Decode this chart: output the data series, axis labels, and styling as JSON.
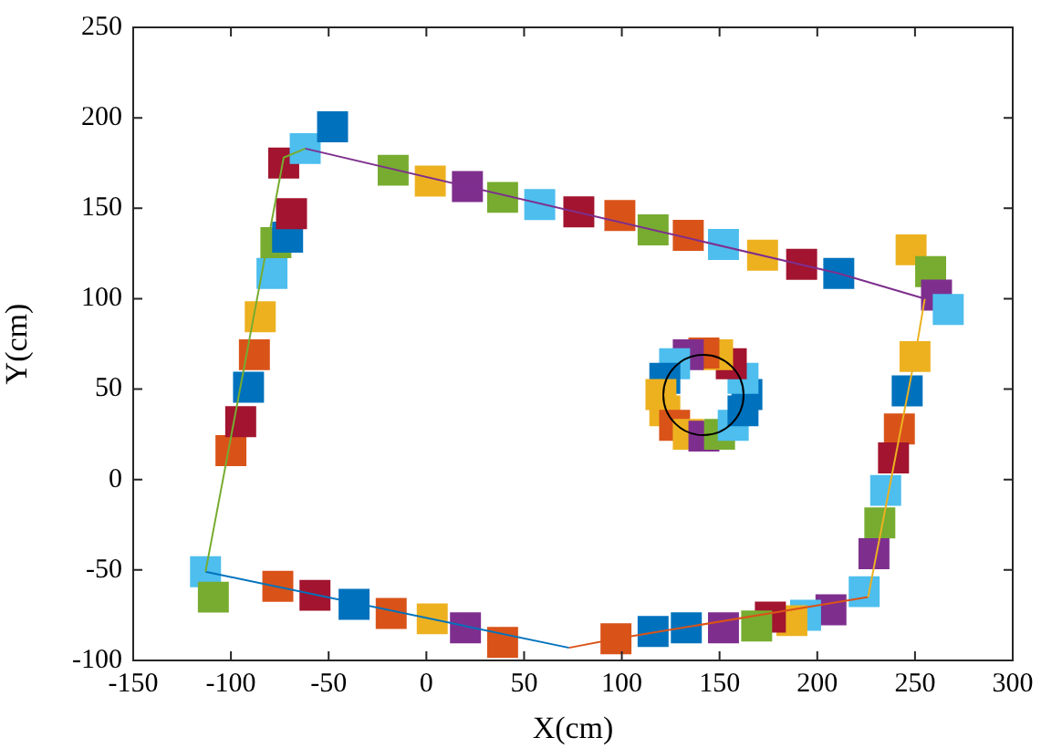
{
  "chart_data": {
    "type": "scatter",
    "xlabel": "X(cm)",
    "ylabel": "Y(cm)",
    "xlim": [
      -150,
      300
    ],
    "ylim": [
      -100,
      250
    ],
    "xticks": [
      -150,
      -100,
      -50,
      0,
      50,
      100,
      150,
      200,
      250,
      300
    ],
    "yticks": [
      -100,
      -50,
      0,
      50,
      100,
      150,
      200,
      250
    ],
    "grid": false,
    "legend": false,
    "series": [
      {
        "type": "line",
        "color": "#77ac30",
        "marker": "none",
        "x": [
          -113,
          -73,
          -62
        ],
        "values": [
          -51,
          178,
          183
        ]
      },
      {
        "type": "line",
        "color": "#7e2f8e",
        "marker": "none",
        "x": [
          -62,
          211,
          255
        ],
        "values": [
          183,
          114,
          100
        ]
      },
      {
        "type": "line",
        "color": "#edb120",
        "marker": "none",
        "x": [
          255,
          250,
          226
        ],
        "values": [
          100,
          68,
          -65
        ]
      },
      {
        "type": "line",
        "color": "#d95319",
        "marker": "none",
        "x": [
          226,
          97,
          73
        ],
        "values": [
          -65,
          -88,
          -93
        ]
      },
      {
        "type": "line",
        "color": "#0072bd",
        "marker": "none",
        "x": [
          73,
          -113
        ],
        "values": [
          -93,
          -51
        ]
      },
      {
        "marker": "square",
        "x": [
          -113,
          -109,
          -100,
          -95,
          -91,
          -88,
          -85,
          -79,
          -77,
          -71,
          -69,
          -73,
          -62,
          -48,
          -17,
          2,
          21,
          39,
          58,
          78,
          99,
          116,
          134,
          152,
          172,
          192,
          211,
          248,
          258,
          261,
          267,
          250,
          246,
          242,
          239,
          235,
          232,
          229,
          224,
          207,
          194,
          187,
          176,
          169,
          152,
          133,
          116,
          97,
          39,
          20,
          3,
          -18,
          -37,
          -57,
          -76,
          164,
          162,
          156,
          149,
          142,
          134,
          127,
          122,
          120,
          122,
          127,
          134,
          142,
          150,
          157,
          162
        ],
        "values": [
          -51,
          -65,
          16,
          32,
          51,
          69,
          90,
          114,
          131,
          134,
          147,
          175,
          183,
          195,
          171,
          165,
          162,
          156,
          152,
          148,
          146,
          138,
          135,
          130,
          124,
          119,
          114,
          127,
          115,
          102,
          94,
          68,
          49,
          28,
          12,
          -6,
          -24,
          -41,
          -62,
          -72,
          -75,
          -78,
          -76,
          -81,
          -82,
          -82,
          -84,
          -88,
          -90,
          -82,
          -77,
          -74,
          -69,
          -64,
          -59,
          47,
          56,
          64,
          69,
          70,
          69,
          64,
          56,
          47,
          38,
          30,
          25,
          24,
          25,
          30,
          38
        ],
        "colors": [
          "#4dbeee",
          "#77ac30",
          "#d95319",
          "#a2142f",
          "#0072bd",
          "#d95319",
          "#edb120",
          "#4dbeee",
          "#77ac30",
          "#0072bd",
          "#a2142f",
          "#a2142f",
          "#4dbeee",
          "#0072bd",
          "#77ac30",
          "#edb120",
          "#7e2f8e",
          "#77ac30",
          "#4dbeee",
          "#a2142f",
          "#d95319",
          "#77ac30",
          "#d95319",
          "#4dbeee",
          "#edb120",
          "#a2142f",
          "#0072bd",
          "#edb120",
          "#77ac30",
          "#7e2f8e",
          "#4dbeee",
          "#edb120",
          "#0072bd",
          "#d95319",
          "#a2142f",
          "#4dbeee",
          "#77ac30",
          "#7e2f8e",
          "#4dbeee",
          "#7e2f8e",
          "#4dbeee",
          "#edb120",
          "#a2142f",
          "#77ac30",
          "#7e2f8e",
          "#0072bd",
          "#0072bd",
          "#d95319",
          "#d95319",
          "#7e2f8e",
          "#edb120",
          "#d95319",
          "#0072bd",
          "#a2142f",
          "#d95319",
          "#0072bd",
          "#4dbeee",
          "#a2142f",
          "#edb120",
          "#d95319",
          "#7e2f8e",
          "#4dbeee",
          "#0072bd",
          "#edb120",
          "#edb120",
          "#d95319",
          "#edb120",
          "#7e2f8e",
          "#77ac30",
          "#4dbeee",
          "#0072bd"
        ]
      }
    ]
  }
}
